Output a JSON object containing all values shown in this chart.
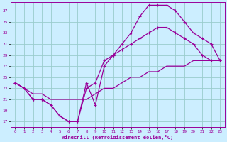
{
  "xlabel": "Windchill (Refroidissement éolien,°C)",
  "bg_color": "#cceeff",
  "line_color": "#990099",
  "grid_color": "#99cccc",
  "xlim": [
    -0.5,
    23.5
  ],
  "ylim": [
    16,
    38.5
  ],
  "xticks": [
    0,
    1,
    2,
    3,
    4,
    5,
    6,
    7,
    8,
    9,
    10,
    11,
    12,
    13,
    14,
    15,
    16,
    17,
    18,
    19,
    20,
    21,
    22,
    23
  ],
  "yticks": [
    17,
    19,
    21,
    23,
    25,
    27,
    29,
    31,
    33,
    35,
    37
  ],
  "line1_x": [
    0,
    1,
    2,
    3,
    4,
    5,
    6,
    7,
    8,
    9,
    10,
    11,
    12,
    13,
    14,
    15,
    16,
    17,
    18,
    19,
    20,
    21,
    22,
    23
  ],
  "line1_y": [
    24,
    23,
    21,
    21,
    20,
    18,
    17,
    17,
    24,
    20,
    27,
    29,
    31,
    33,
    36,
    38,
    38,
    38,
    37,
    35,
    33,
    32,
    31,
    28
  ],
  "line2_x": [
    0,
    1,
    2,
    3,
    4,
    5,
    6,
    7,
    8,
    9,
    10,
    11,
    12,
    13,
    14,
    15,
    16,
    17,
    18,
    19,
    20,
    21,
    22,
    23
  ],
  "line2_y": [
    24,
    23,
    21,
    21,
    20,
    18,
    17,
    17,
    23,
    24,
    28,
    29,
    30,
    31,
    32,
    33,
    34,
    34,
    33,
    32,
    31,
    29,
    28,
    28
  ],
  "line3_x": [
    0,
    1,
    2,
    3,
    4,
    5,
    6,
    7,
    8,
    9,
    10,
    11,
    12,
    13,
    14,
    15,
    16,
    17,
    18,
    19,
    20,
    21,
    22,
    23
  ],
  "line3_y": [
    24,
    23,
    22,
    22,
    21,
    21,
    21,
    21,
    21,
    22,
    23,
    23,
    24,
    25,
    25,
    26,
    26,
    27,
    27,
    27,
    28,
    28,
    28,
    28
  ]
}
